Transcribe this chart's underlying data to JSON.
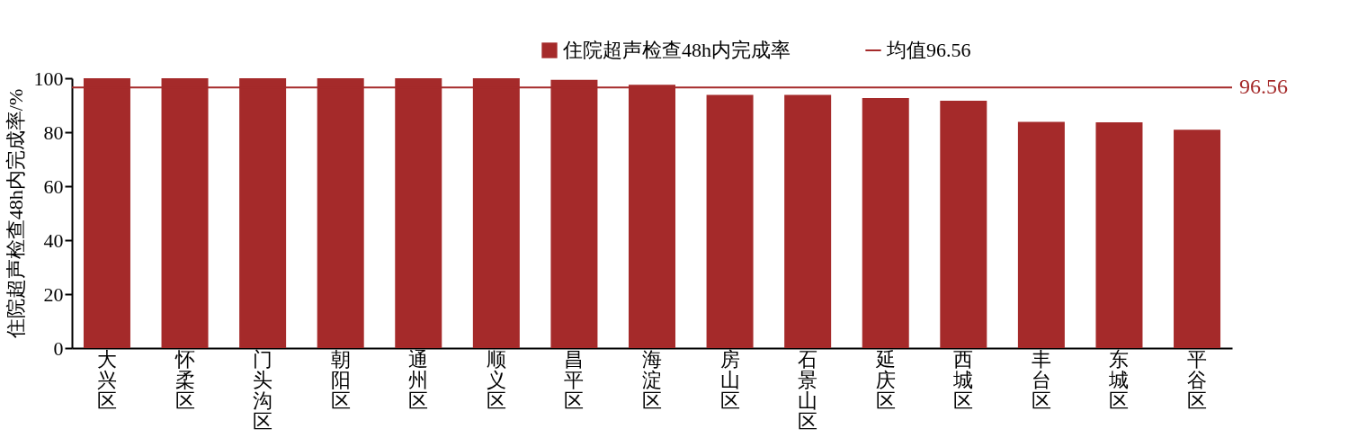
{
  "chart_data": {
    "type": "bar",
    "ylabel": "住院超声检查48h内完成率/%",
    "categories": [
      "大兴区",
      "怀柔区",
      "门头沟区",
      "朝阳区",
      "通州区",
      "顺义区",
      "昌平区",
      "海淀区",
      "房山区",
      "石景山区",
      "延庆区",
      "西城区",
      "丰台区",
      "东城区",
      "平谷区"
    ],
    "series": [
      {
        "name": "住院超声检查48h内完成率",
        "color": "#a52a2a",
        "values": [
          100,
          100,
          100,
          100,
          100,
          100,
          99.4,
          97.6,
          93.8,
          93.8,
          92.7,
          91.7,
          83.8,
          83.7,
          80.9
        ]
      }
    ],
    "ylim": [
      0,
      100
    ],
    "yticks": [
      0,
      20,
      40,
      60,
      80,
      100
    ],
    "grid": false,
    "legend": "top",
    "ref_lines": [
      {
        "axis": "y",
        "value": 96.56,
        "label": "均值96.56",
        "color": "#a52a2a"
      }
    ],
    "annotations": [
      "96.56"
    ]
  }
}
